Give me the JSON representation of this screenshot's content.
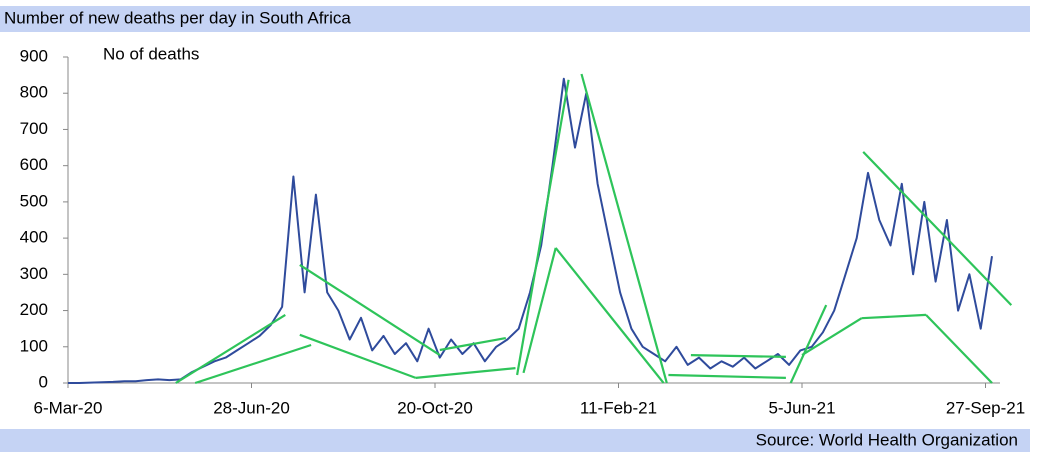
{
  "chart_data": {
    "type": "line",
    "title": "Number of new deaths per day in South Africa",
    "y_label": "No of deaths",
    "source": "Source: World Health Organization",
    "x": [
      "2020-03-06",
      "2020-03-13",
      "2020-03-20",
      "2020-03-27",
      "2020-04-03",
      "2020-04-10",
      "2020-04-17",
      "2020-04-24",
      "2020-05-01",
      "2020-05-08",
      "2020-05-15",
      "2020-05-22",
      "2020-05-29",
      "2020-06-05",
      "2020-06-12",
      "2020-06-19",
      "2020-06-26",
      "2020-07-03",
      "2020-07-10",
      "2020-07-17",
      "2020-07-24",
      "2020-07-31",
      "2020-08-07",
      "2020-08-14",
      "2020-08-21",
      "2020-08-28",
      "2020-09-04",
      "2020-09-11",
      "2020-09-18",
      "2020-09-25",
      "2020-10-02",
      "2020-10-09",
      "2020-10-16",
      "2020-10-23",
      "2020-10-30",
      "2020-11-06",
      "2020-11-13",
      "2020-11-20",
      "2020-11-27",
      "2020-12-04",
      "2020-12-11",
      "2020-12-18",
      "2020-12-25",
      "2021-01-01",
      "2021-01-08",
      "2021-01-15",
      "2021-01-22",
      "2021-01-29",
      "2021-02-05",
      "2021-02-12",
      "2021-02-19",
      "2021-02-26",
      "2021-03-05",
      "2021-03-12",
      "2021-03-19",
      "2021-03-26",
      "2021-04-02",
      "2021-04-09",
      "2021-04-16",
      "2021-04-23",
      "2021-04-30",
      "2021-05-07",
      "2021-05-14",
      "2021-05-21",
      "2021-05-28",
      "2021-06-04",
      "2021-06-11",
      "2021-06-18",
      "2021-06-25",
      "2021-07-02",
      "2021-07-09",
      "2021-07-16",
      "2021-07-23",
      "2021-07-30",
      "2021-08-06",
      "2021-08-13",
      "2021-08-20",
      "2021-08-27",
      "2021-09-03",
      "2021-09-10",
      "2021-09-17",
      "2021-09-24",
      "2021-10-01"
    ],
    "series": [
      {
        "color": "#2f4b9c",
        "values": [
          0,
          0,
          1,
          2,
          3,
          5,
          5,
          8,
          10,
          8,
          10,
          30,
          45,
          60,
          70,
          90,
          110,
          130,
          160,
          210,
          570,
          250,
          520,
          250,
          200,
          120,
          180,
          90,
          130,
          80,
          110,
          60,
          150,
          70,
          120,
          80,
          110,
          60,
          100,
          120,
          150,
          250,
          380,
          600,
          840,
          650,
          800,
          550,
          400,
          250,
          150,
          100,
          80,
          60,
          100,
          50,
          70,
          40,
          60,
          45,
          70,
          40,
          60,
          80,
          50,
          90,
          100,
          140,
          200,
          300,
          400,
          580,
          450,
          380,
          550,
          300,
          500,
          280,
          450,
          200,
          300,
          150,
          350
        ]
      }
    ],
    "trend_lines": {
      "color": "#2ec45a",
      "lines": [
        {
          "x": [
            "2020-05-12",
            "2020-07-19"
          ],
          "values": [
            0,
            188
          ]
        },
        {
          "x": [
            "2020-05-24",
            "2020-08-04"
          ],
          "values": [
            0,
            105
          ]
        },
        {
          "x": [
            "2020-07-28",
            "2020-10-23"
          ],
          "values": [
            326,
            77
          ]
        },
        {
          "x": [
            "2020-07-28",
            "2020-10-08"
          ],
          "values": [
            133,
            14
          ]
        },
        {
          "x": [
            "2020-10-08",
            "2020-12-09"
          ],
          "values": [
            14,
            41
          ]
        },
        {
          "x": [
            "2020-10-23",
            "2020-12-03"
          ],
          "values": [
            91,
            124
          ]
        },
        {
          "x": [
            "2020-12-10",
            "2021-01-11"
          ],
          "values": [
            22,
            837
          ]
        },
        {
          "x": [
            "2020-12-14",
            "2021-01-03"
          ],
          "values": [
            28,
            373
          ]
        },
        {
          "x": [
            "2021-01-03",
            "2021-03-11"
          ],
          "values": [
            373,
            0
          ]
        },
        {
          "x": [
            "2021-01-19",
            "2021-03-13"
          ],
          "values": [
            853,
            0
          ]
        },
        {
          "x": [
            "2021-03-14",
            "2021-05-26"
          ],
          "values": [
            22,
            14
          ]
        },
        {
          "x": [
            "2021-03-28",
            "2021-05-26"
          ],
          "values": [
            77,
            72
          ]
        },
        {
          "x": [
            "2021-05-29",
            "2021-06-20"
          ],
          "values": [
            0,
            215
          ]
        },
        {
          "x": [
            "2021-06-05",
            "2021-07-12"
          ],
          "values": [
            77,
            179
          ]
        },
        {
          "x": [
            "2021-07-12",
            "2021-08-21"
          ],
          "values": [
            179,
            188
          ]
        },
        {
          "x": [
            "2021-08-21",
            "2021-10-01"
          ],
          "values": [
            188,
            0
          ]
        },
        {
          "x": [
            "2021-07-13",
            "2021-10-13"
          ],
          "values": [
            638,
            215
          ]
        }
      ]
    },
    "xlim": [
      "2020-03-06",
      "2021-10-06"
    ],
    "xticks": [
      {
        "value": "2020-03-06",
        "label": "6-Mar-20"
      },
      {
        "value": "2020-06-28",
        "label": "28-Jun-20"
      },
      {
        "value": "2020-10-20",
        "label": "20-Oct-20"
      },
      {
        "value": "2021-02-11",
        "label": "11-Feb-21"
      },
      {
        "value": "2021-06-05",
        "label": "5-Jun-21"
      },
      {
        "value": "2021-09-27",
        "label": "27-Sep-21"
      }
    ],
    "ylim": [
      0,
      900
    ],
    "yticks": [
      0,
      100,
      200,
      300,
      400,
      500,
      600,
      700,
      800,
      900
    ],
    "grid": false
  }
}
